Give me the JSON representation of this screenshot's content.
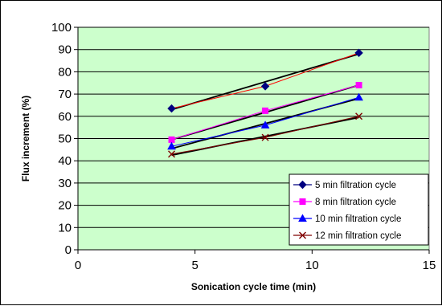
{
  "chart_data": {
    "type": "line",
    "title": "",
    "xlabel": "Sonication cycle time (min)",
    "ylabel": "Flux increment (%)",
    "xlim": [
      0,
      15
    ],
    "ylim": [
      0,
      100
    ],
    "xticks": [
      0,
      5,
      10,
      15
    ],
    "yticks": [
      0,
      10,
      20,
      30,
      40,
      50,
      60,
      70,
      80,
      90,
      100
    ],
    "grid": "horizontal",
    "legend_position": "bottom-right",
    "plot_background": "#ccffcc",
    "series": [
      {
        "name": "5 min filtration cycle",
        "color": "#000080",
        "trend_color": "#ff0000",
        "marker": "diamond",
        "x": [
          4,
          8,
          12
        ],
        "values": [
          63.5,
          73.5,
          88.5
        ],
        "trend": [
          63.0,
          75.5,
          88.0
        ]
      },
      {
        "name": "8 min filtration cycle",
        "color": "#ff00ff",
        "trend_color": "#ff00ff",
        "marker": "square",
        "x": [
          4,
          8,
          12
        ],
        "values": [
          49.5,
          62.5,
          74
        ],
        "trend": [
          49.5,
          62.0,
          74.0
        ]
      },
      {
        "name": "10 min filtration cycle",
        "color": "#0000ff",
        "trend_color": "#0000ff",
        "marker": "triangle",
        "x": [
          4,
          8,
          12
        ],
        "values": [
          46.5,
          56,
          68.5
        ],
        "trend": [
          45.5,
          57.0,
          68.0
        ]
      },
      {
        "name": "12 min filtration cycle",
        "color": "#800000",
        "trend_color": "#800000",
        "marker": "x",
        "x": [
          4,
          8,
          12
        ],
        "values": [
          43,
          50.5,
          60
        ],
        "trend": [
          42.5,
          51.0,
          59.5
        ]
      }
    ]
  }
}
